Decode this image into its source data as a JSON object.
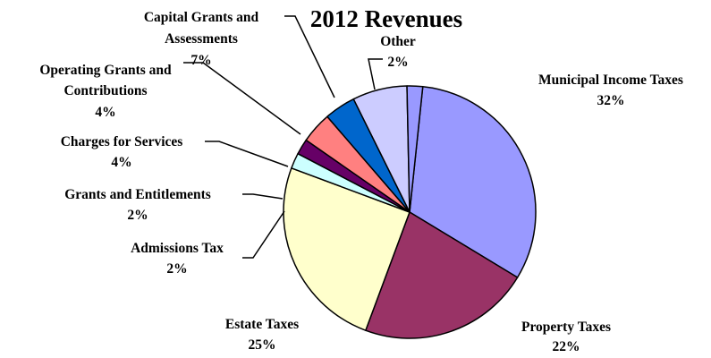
{
  "chart_data": {
    "type": "pie",
    "title": "2012 Revenues",
    "slices": [
      {
        "label": "Municipal Income Taxes",
        "value": 32,
        "value_label": "32%",
        "color": "#9999ff"
      },
      {
        "label": "Property Taxes",
        "value": 22,
        "value_label": "22%",
        "color": "#993366"
      },
      {
        "label": "Estate Taxes",
        "value": 25,
        "value_label": "25%",
        "color": "#ffffcc"
      },
      {
        "label": "Admissions Tax",
        "value": 2,
        "value_label": "2%",
        "color": "#ccffff"
      },
      {
        "label": "Grants and Entitlements",
        "value": 2,
        "value_label": "2%",
        "color": "#660066"
      },
      {
        "label": "Charges for Services",
        "value": 4,
        "value_label": "4%",
        "color": "#ff8080"
      },
      {
        "label": "Operating Grants and Contributions",
        "value": 4,
        "value_label": "4%",
        "color": "#0066cc"
      },
      {
        "label": "Capital Grants and Assessments",
        "value": 7,
        "value_label": "7%",
        "color": "#ccccff"
      },
      {
        "label": "Other",
        "value": 2,
        "value_label": "2%",
        "color": "#9999ff"
      }
    ],
    "legend": "none",
    "labels": "outside-with-leader-lines"
  }
}
